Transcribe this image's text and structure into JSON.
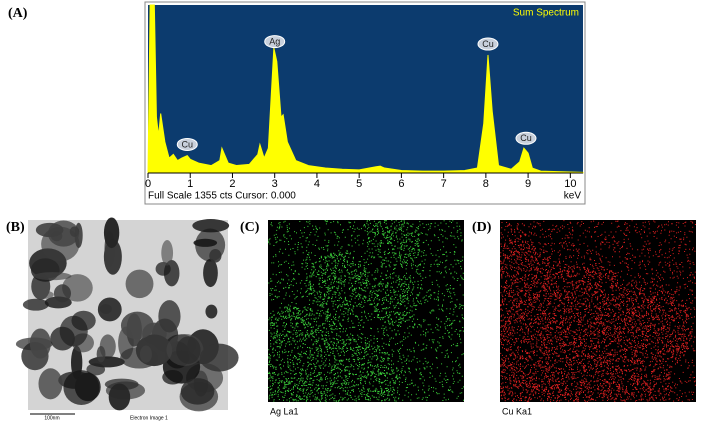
{
  "chart_data": {
    "type": "area",
    "subtitle": "Sum Spectrum",
    "info": "Full Scale 1355 cts Cursor: 0.000",
    "x_label": "keV",
    "x": [
      0,
      0.05,
      0.1,
      0.15,
      0.2,
      0.25,
      0.3,
      0.4,
      0.5,
      0.6,
      0.7,
      0.8,
      0.93,
      1.0,
      1.2,
      1.5,
      1.7,
      1.75,
      1.8,
      1.9,
      2.1,
      2.4,
      2.6,
      2.65,
      2.75,
      2.85,
      2.98,
      3.05,
      3.15,
      3.2,
      3.3,
      3.5,
      3.8,
      4.2,
      4.6,
      5.0,
      5.4,
      5.5,
      5.6,
      6.0,
      6.5,
      7.0,
      7.5,
      7.8,
      7.95,
      8.05,
      8.15,
      8.3,
      8.6,
      8.8,
      8.9,
      9.0,
      9.1,
      9.3,
      10.3
    ],
    "values": [
      0,
      1355,
      1355,
      1355,
      450,
      300,
      480,
      250,
      120,
      150,
      100,
      120,
      140,
      110,
      80,
      60,
      100,
      200,
      160,
      80,
      60,
      70,
      150,
      230,
      120,
      200,
      1008,
      900,
      450,
      470,
      250,
      100,
      60,
      40,
      30,
      25,
      50,
      55,
      40,
      20,
      15,
      15,
      20,
      40,
      400,
      952,
      500,
      60,
      30,
      90,
      200,
      160,
      40,
      15,
      5
    ],
    "color": "#ffff00",
    "background": "#0c3b6e",
    "xlim": [
      0,
      10.3
    ],
    "ylim": [
      0,
      1355
    ],
    "xticks": [
      0,
      1,
      2,
      3,
      4,
      5,
      6,
      7,
      8,
      9,
      10
    ],
    "annotations": [
      {
        "text": "Cu",
        "x": 0.93,
        "y": 230
      },
      {
        "text": "Ag",
        "x": 3.0,
        "y": 1060
      },
      {
        "text": "Cu",
        "x": 8.05,
        "y": 1040
      },
      {
        "text": "Cu",
        "x": 8.95,
        "y": 280
      }
    ]
  },
  "figure": {
    "panel_labels": [
      "(A)",
      "(B)",
      "(C)",
      "(D)"
    ],
    "scale_bar": "100nm",
    "b_caption": "Electron Image 1",
    "c_caption": "Ag La1",
    "d_caption": "Cu Ka1"
  }
}
